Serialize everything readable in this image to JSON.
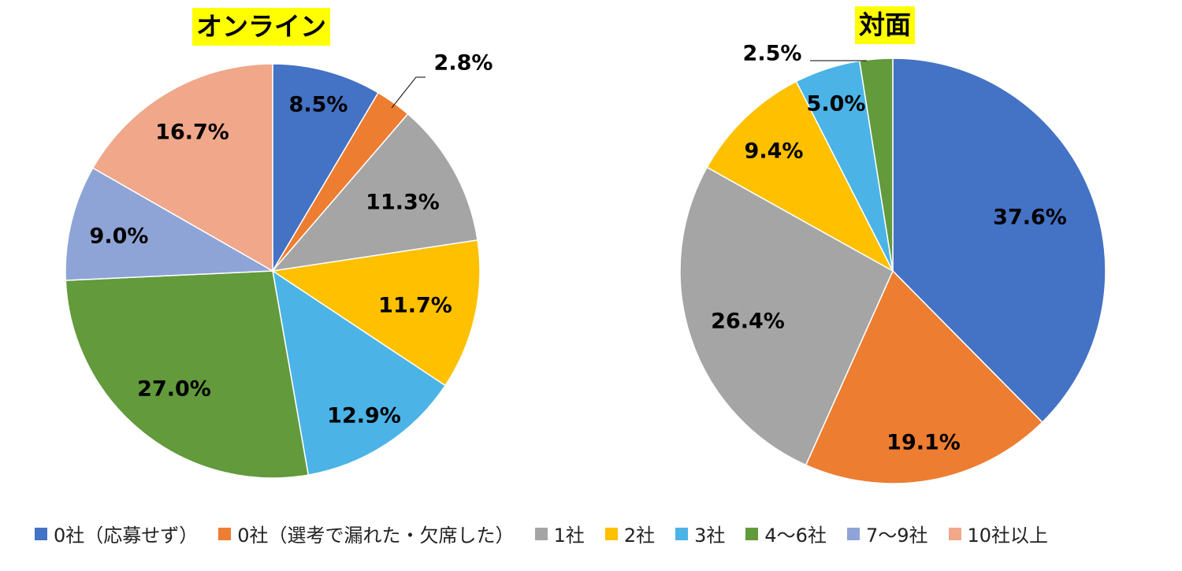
{
  "legend": [
    {
      "label": "0社（応募せず）",
      "color": "#4472C4"
    },
    {
      "label": "0社（選考で漏れた・欠席した）",
      "color": "#ED7D31"
    },
    {
      "label": "1社",
      "color": "#A5A5A5"
    },
    {
      "label": "2社",
      "color": "#FFC000"
    },
    {
      "label": "3社",
      "color": "#4BB3E6"
    },
    {
      "label": "4～6社",
      "color": "#629A3C"
    },
    {
      "label": "7～9社",
      "color": "#8FA4D6"
    },
    {
      "label": "10社以上",
      "color": "#F0A78A"
    }
  ],
  "chart_data": [
    {
      "type": "pie",
      "title": "オンライン",
      "title_highlight": "#FFFF00",
      "categories": [
        "0社（応募せず）",
        "0社（選考で漏れた・欠席した）",
        "1社",
        "2社",
        "3社",
        "4～6社",
        "7～9社",
        "10社以上"
      ],
      "values": [
        8.5,
        2.8,
        11.3,
        11.7,
        12.9,
        27.0,
        9.0,
        16.7
      ],
      "labels": [
        "8.5%",
        "2.8%",
        "11.3%",
        "11.7%",
        "12.9%",
        "27.0%",
        "9.0%",
        "16.7%"
      ],
      "legend_placement": "bottom"
    },
    {
      "type": "pie",
      "title": "対面",
      "title_highlight": "#FFFF00",
      "categories": [
        "0社（応募せず）",
        "0社（選考で漏れた・欠席した）",
        "1社",
        "2社",
        "3社",
        "4～6社"
      ],
      "values": [
        37.6,
        19.1,
        26.4,
        9.4,
        5.0,
        2.5
      ],
      "labels": [
        "37.6%",
        "19.1%",
        "26.4%",
        "9.4%",
        "5.0%",
        "2.5%"
      ],
      "legend_placement": "bottom"
    }
  ]
}
